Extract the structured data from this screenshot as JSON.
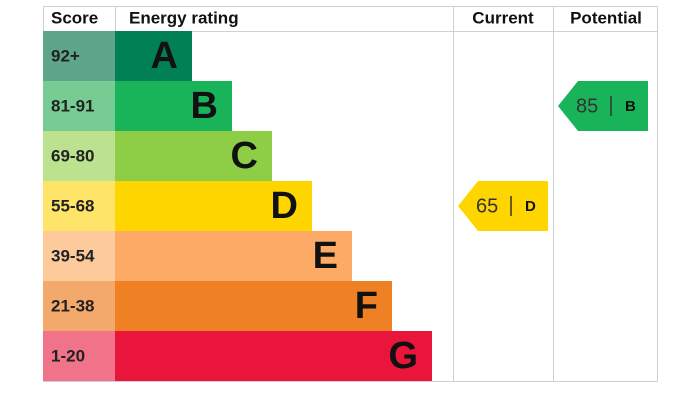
{
  "header": {
    "score": "Score",
    "rating": "Energy rating",
    "current": "Current",
    "potential": "Potential"
  },
  "bands": [
    {
      "score": "92+",
      "rating": "A",
      "color": "#008054",
      "cell_color": "#5fa58a"
    },
    {
      "score": "81-91",
      "rating": "B",
      "color": "#19b459",
      "cell_color": "#76cc93"
    },
    {
      "score": "69-80",
      "rating": "C",
      "color": "#8dce46",
      "cell_color": "#bce28f"
    },
    {
      "score": "55-68",
      "rating": "D",
      "color": "#ffd500",
      "cell_color": "#ffe46a"
    },
    {
      "score": "39-54",
      "rating": "E",
      "color": "#fcaa65",
      "cell_color": "#fdca9c"
    },
    {
      "score": "21-38",
      "rating": "F",
      "color": "#ef8023",
      "cell_color": "#f4a96c"
    },
    {
      "score": "1-20",
      "rating": "G",
      "color": "#e9153b",
      "cell_color": "#f07389"
    }
  ],
  "current": {
    "score": 65,
    "rating": "D"
  },
  "potential": {
    "score": 85,
    "rating": "B"
  }
}
